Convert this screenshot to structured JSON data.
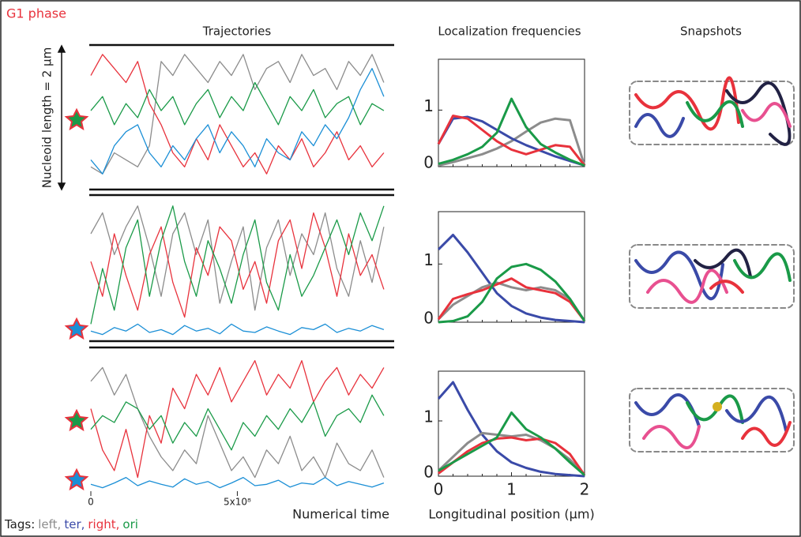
{
  "figure_label": "G1 phase",
  "columns": [
    "Trajectories",
    "Localization frequencies",
    "Snapshots"
  ],
  "tags": {
    "label": "Tags:",
    "items": [
      {
        "name": "left,",
        "color": "#8c8c8c"
      },
      {
        "name": "ter,",
        "color": "#3a4aa8"
      },
      {
        "name": "right,",
        "color": "#e8323c"
      },
      {
        "name": "ori",
        "color": "#1a9a48"
      }
    ]
  },
  "chart_data": [
    {
      "type": "line",
      "ylabel": "Nucleoid length = 2 µm",
      "x": [
        0,
        40000000,
        80000000,
        120000000,
        160000000,
        200000000,
        240000000,
        280000000,
        320000000,
        360000000,
        400000000,
        440000000,
        480000000,
        520000000,
        560000000,
        600000000,
        640000000,
        680000000,
        720000000,
        760000000,
        800000000,
        840000000,
        880000000,
        920000000,
        960000000,
        1000000000
      ],
      "xlim": [
        0,
        1030000000
      ],
      "ylim": [
        0,
        2
      ],
      "series": [
        {
          "color": "#8c8c8c",
          "values": [
            0.3,
            0.2,
            0.5,
            0.4,
            0.3,
            0.6,
            1.8,
            1.6,
            1.9,
            1.7,
            1.5,
            1.8,
            1.6,
            1.9,
            1.4,
            1.7,
            1.8,
            1.5,
            1.9,
            1.6,
            1.7,
            1.4,
            1.8,
            1.6,
            1.9,
            1.5
          ]
        },
        {
          "color": "#e8323c",
          "values": [
            1.6,
            1.9,
            1.7,
            1.5,
            1.8,
            1.2,
            0.9,
            0.5,
            0.3,
            0.7,
            0.4,
            0.9,
            0.6,
            0.3,
            0.5,
            0.2,
            0.6,
            0.4,
            0.7,
            0.3,
            0.5,
            0.8,
            0.4,
            0.6,
            0.3,
            0.5
          ]
        },
        {
          "color": "#1a9a48",
          "values": [
            1.1,
            1.3,
            0.9,
            1.2,
            1.0,
            1.4,
            1.1,
            1.3,
            0.9,
            1.2,
            1.4,
            1.0,
            1.3,
            1.1,
            1.5,
            1.2,
            0.9,
            1.3,
            1.1,
            1.4,
            1.0,
            1.2,
            1.3,
            0.9,
            1.2,
            1.1
          ]
        },
        {
          "color": "#1b8fd6",
          "values": [
            0.4,
            0.2,
            0.6,
            0.8,
            0.9,
            0.5,
            0.3,
            0.6,
            0.4,
            0.7,
            0.9,
            0.5,
            0.8,
            0.6,
            0.3,
            0.7,
            0.5,
            0.4,
            0.8,
            0.6,
            0.9,
            0.7,
            1.0,
            1.4,
            1.7,
            1.3
          ]
        }
      ]
    },
    {
      "type": "line",
      "x": [
        0,
        40000000,
        80000000,
        120000000,
        160000000,
        200000000,
        240000000,
        280000000,
        320000000,
        360000000,
        400000000,
        440000000,
        480000000,
        520000000,
        560000000,
        600000000,
        640000000,
        680000000,
        720000000,
        760000000,
        800000000,
        840000000,
        880000000,
        920000000,
        960000000,
        1000000000
      ],
      "xlim": [
        0,
        1030000000
      ],
      "ylim": [
        0,
        2
      ],
      "series": [
        {
          "color": "#8c8c8c",
          "values": [
            1.5,
            1.8,
            1.2,
            1.6,
            1.9,
            1.3,
            0.6,
            1.5,
            1.8,
            1.2,
            1.7,
            0.5,
            1.1,
            1.6,
            0.4,
            1.3,
            1.7,
            0.9,
            1.5,
            1.2,
            1.8,
            1.0,
            0.6,
            1.4,
            0.8,
            1.6
          ]
        },
        {
          "color": "#e8323c",
          "values": [
            1.1,
            0.6,
            1.5,
            0.9,
            0.4,
            1.2,
            1.6,
            0.8,
            0.3,
            1.3,
            0.9,
            1.6,
            1.4,
            0.7,
            1.1,
            0.5,
            1.4,
            1.7,
            1.0,
            1.8,
            1.3,
            0.6,
            1.5,
            0.9,
            1.2,
            0.7
          ]
        },
        {
          "color": "#1a9a48",
          "values": [
            0.2,
            1.0,
            0.4,
            1.3,
            1.7,
            0.6,
            1.4,
            1.9,
            1.1,
            0.6,
            1.4,
            1.0,
            0.5,
            1.2,
            1.7,
            0.8,
            0.4,
            1.2,
            0.6,
            0.9,
            1.3,
            1.7,
            1.2,
            1.8,
            1.4,
            1.9
          ]
        },
        {
          "color": "#1b8fd6",
          "values": [
            0.1,
            0.05,
            0.15,
            0.1,
            0.2,
            0.08,
            0.12,
            0.05,
            0.18,
            0.1,
            0.14,
            0.06,
            0.2,
            0.1,
            0.08,
            0.16,
            0.1,
            0.05,
            0.15,
            0.12,
            0.2,
            0.08,
            0.14,
            0.1,
            0.18,
            0.12
          ]
        }
      ]
    },
    {
      "type": "line",
      "xlabel": "Numerical time",
      "x": [
        0,
        40000000,
        80000000,
        120000000,
        160000000,
        200000000,
        240000000,
        280000000,
        320000000,
        360000000,
        400000000,
        440000000,
        480000000,
        520000000,
        560000000,
        600000000,
        640000000,
        680000000,
        720000000,
        760000000,
        800000000,
        840000000,
        880000000,
        920000000,
        960000000,
        1000000000
      ],
      "xlim": [
        0,
        1030000000
      ],
      "ylim": [
        0,
        2
      ],
      "xticks": [
        0,
        {
          "value": 500000000,
          "label": "5x10⁸"
        }
      ],
      "series": [
        {
          "color": "#8c8c8c",
          "values": [
            1.6,
            1.8,
            1.4,
            1.7,
            1.2,
            0.8,
            0.5,
            0.3,
            0.6,
            0.4,
            1.1,
            0.7,
            0.3,
            0.5,
            0.2,
            0.6,
            0.4,
            0.8,
            0.3,
            0.5,
            0.2,
            0.7,
            0.4,
            0.3,
            0.6,
            0.2
          ]
        },
        {
          "color": "#e8323c",
          "values": [
            1.2,
            0.6,
            0.3,
            0.9,
            0.2,
            1.1,
            0.7,
            1.5,
            1.2,
            1.7,
            1.4,
            1.8,
            1.3,
            1.6,
            1.9,
            1.4,
            1.7,
            1.5,
            1.9,
            1.3,
            1.6,
            1.8,
            1.4,
            1.7,
            1.5,
            1.8
          ]
        },
        {
          "color": "#1a9a48",
          "values": [
            0.9,
            1.1,
            1.0,
            1.3,
            1.2,
            0.9,
            1.1,
            0.7,
            1.0,
            0.8,
            1.2,
            0.9,
            0.6,
            1.0,
            0.8,
            1.1,
            0.9,
            1.2,
            1.0,
            1.3,
            0.8,
            1.1,
            1.2,
            1.0,
            1.4,
            1.1
          ]
        },
        {
          "color": "#1b8fd6",
          "values": [
            0.1,
            0.05,
            0.12,
            0.2,
            0.08,
            0.15,
            0.1,
            0.06,
            0.18,
            0.1,
            0.14,
            0.05,
            0.12,
            0.2,
            0.08,
            0.1,
            0.16,
            0.06,
            0.12,
            0.1,
            0.2,
            0.08,
            0.14,
            0.1,
            0.06,
            0.12
          ]
        }
      ]
    },
    {
      "type": "line",
      "x": [
        0,
        0.2,
        0.4,
        0.6,
        0.8,
        1,
        1.2,
        1.4,
        1.6,
        1.8,
        2
      ],
      "xlim": [
        0,
        2
      ],
      "ylim": [
        0,
        1.9
      ],
      "yticks": [
        0,
        1
      ],
      "series": [
        {
          "color": "#8c8c8c",
          "values": [
            0.02,
            0.08,
            0.15,
            0.22,
            0.32,
            0.45,
            0.62,
            0.78,
            0.85,
            0.82,
            0.02
          ]
        },
        {
          "color": "#3a4aa8",
          "values": [
            0.4,
            0.85,
            0.88,
            0.8,
            0.65,
            0.5,
            0.38,
            0.28,
            0.18,
            0.1,
            0.02
          ]
        },
        {
          "color": "#e8323c",
          "values": [
            0.4,
            0.9,
            0.85,
            0.65,
            0.45,
            0.3,
            0.22,
            0.3,
            0.38,
            0.35,
            0.02
          ]
        },
        {
          "color": "#1a9a48",
          "values": [
            0.05,
            0.12,
            0.22,
            0.35,
            0.6,
            1.2,
            0.7,
            0.4,
            0.25,
            0.12,
            0.02
          ]
        }
      ]
    },
    {
      "type": "line",
      "x": [
        0,
        0.2,
        0.4,
        0.6,
        0.8,
        1,
        1.2,
        1.4,
        1.6,
        1.8,
        2
      ],
      "xlim": [
        0,
        2
      ],
      "ylim": [
        0,
        1.9
      ],
      "yticks": [
        0,
        1
      ],
      "series": [
        {
          "color": "#3a4aa8",
          "values": [
            1.25,
            1.5,
            1.2,
            0.85,
            0.5,
            0.28,
            0.15,
            0.08,
            0.04,
            0.02,
            0
          ]
        },
        {
          "color": "#8c8c8c",
          "values": [
            0.05,
            0.3,
            0.45,
            0.6,
            0.68,
            0.6,
            0.55,
            0.6,
            0.55,
            0.4,
            0.02
          ]
        },
        {
          "color": "#e8323c",
          "values": [
            0.05,
            0.4,
            0.48,
            0.55,
            0.65,
            0.75,
            0.6,
            0.55,
            0.5,
            0.35,
            0.02
          ]
        },
        {
          "color": "#1a9a48",
          "values": [
            0,
            0.02,
            0.1,
            0.35,
            0.75,
            0.95,
            1.0,
            0.9,
            0.7,
            0.4,
            0.02
          ]
        }
      ]
    },
    {
      "type": "line",
      "xlabel": "Longitudinal position (µm)",
      "x": [
        0,
        0.2,
        0.4,
        0.6,
        0.8,
        1,
        1.2,
        1.4,
        1.6,
        1.8,
        2
      ],
      "xlim": [
        0,
        2
      ],
      "ylim": [
        0,
        1.9
      ],
      "yticks": [
        0,
        1
      ],
      "xticks": [
        0,
        1,
        2
      ],
      "series": [
        {
          "color": "#3a4aa8",
          "values": [
            1.4,
            1.7,
            1.2,
            0.75,
            0.45,
            0.25,
            0.15,
            0.08,
            0.04,
            0.02,
            0
          ]
        },
        {
          "color": "#8c8c8c",
          "values": [
            0.1,
            0.35,
            0.6,
            0.78,
            0.75,
            0.72,
            0.75,
            0.65,
            0.5,
            0.3,
            0.02
          ]
        },
        {
          "color": "#e8323c",
          "values": [
            0.05,
            0.25,
            0.45,
            0.6,
            0.68,
            0.7,
            0.65,
            0.68,
            0.6,
            0.4,
            0.02
          ]
        },
        {
          "color": "#1a9a48",
          "values": [
            0.1,
            0.25,
            0.4,
            0.55,
            0.7,
            1.15,
            0.85,
            0.7,
            0.5,
            0.25,
            0.02
          ]
        }
      ]
    }
  ]
}
